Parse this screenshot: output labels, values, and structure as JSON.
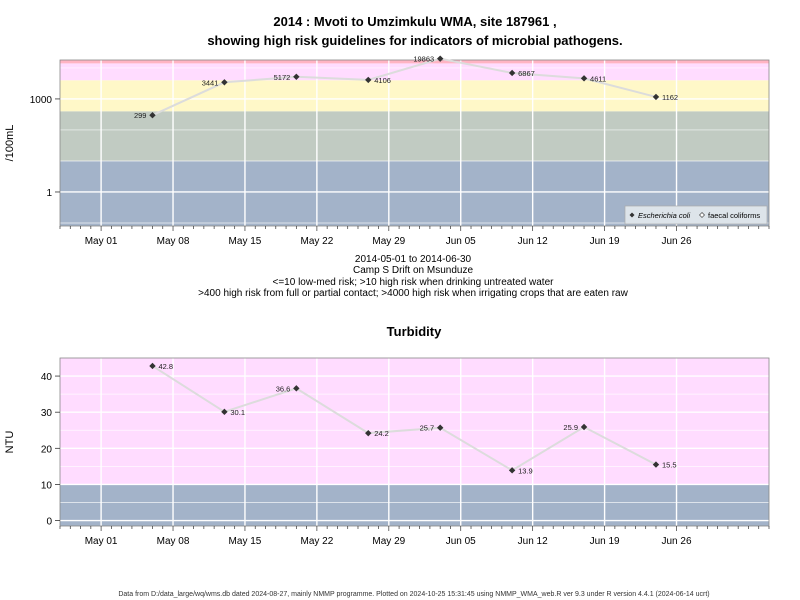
{
  "page_title_line1": "2014 : Mvoti to Umzimkulu WMA, site 187961 ,",
  "page_title_line2": "showing high risk guidelines for indicators of microbial pathogens.",
  "subtitle_lines": [
    "2014-05-01 to 2014-06-30",
    "Camp S Drift on Msunduze",
    "<=10 low-med risk; >10 high risk when drinking untreated water",
    ">400 high risk from full or partial contact; >4000 high risk when irrigating crops that are eaten raw"
  ],
  "footer": "Data from D:/data_large/wq/wms.db dated 2024-08-27, mainly NMMP programme. Plotted on 2024-10-25 15:31:45 using NMMP_WMA_web.R ver 9.3 under R version 4.4.1 (2024-06-14 ucrt)",
  "colors": {
    "band_low": "#a3b3c9",
    "band_mid": "#c1cbc2",
    "band_yellow": "#fff8c8",
    "band_pink": "#ffdcff",
    "band_red": "#ffb4c3",
    "series_line": "#dcdcdc",
    "marker": "#333333"
  },
  "x_ticks": [
    "May 01",
    "May 08",
    "May 15",
    "May 22",
    "May 29",
    "Jun 05",
    "Jun 12",
    "Jun 19",
    "Jun 26"
  ],
  "chart_data": [
    {
      "type": "scatter",
      "ylabel": "/100mL",
      "scale": "log",
      "ylim": [
        0.08,
        18000
      ],
      "xlim": [
        "2014-04-27",
        "2014-07-05"
      ],
      "yticks": [
        "1",
        "1000"
      ],
      "bands": [
        {
          "from": 0.08,
          "to": 10,
          "color": "band_low"
        },
        {
          "from": 10,
          "to": 400,
          "color": "band_mid"
        },
        {
          "from": 400,
          "to": 4000,
          "color": "band_yellow"
        },
        {
          "from": 4000,
          "to": 14000,
          "color": "band_pink"
        },
        {
          "from": 14000,
          "to": 18000,
          "color": "band_red"
        }
      ],
      "legend": {
        "position": "bottom-right",
        "entries": [
          "Escherichia coli",
          "faecal coliforms"
        ]
      },
      "series": [
        {
          "name": "Escherichia coli",
          "points": [
            {
              "x": "2014-05-06",
              "y": 299,
              "label": "299"
            },
            {
              "x": "2014-05-13",
              "y": 3441,
              "label": "3441"
            },
            {
              "x": "2014-05-20",
              "y": 5172,
              "label": "5172"
            },
            {
              "x": "2014-05-27",
              "y": 4106,
              "label": "4106"
            },
            {
              "x": "2014-06-03",
              "y": 19863,
              "label": "19863"
            },
            {
              "x": "2014-06-10",
              "y": 6867,
              "label": "6867"
            },
            {
              "x": "2014-06-17",
              "y": 4611,
              "label": "4611"
            },
            {
              "x": "2014-06-24",
              "y": 1162,
              "label": "1162"
            }
          ]
        }
      ]
    },
    {
      "type": "scatter",
      "title": "Turbidity",
      "ylabel": "NTU",
      "scale": "linear",
      "ylim": [
        -1.5,
        45
      ],
      "xlim": [
        "2014-04-27",
        "2014-07-05"
      ],
      "yticks": [
        0,
        10,
        20,
        30,
        40
      ],
      "bands": [
        {
          "from": -1.5,
          "to": 10,
          "color": "band_low"
        },
        {
          "from": 10,
          "to": 45,
          "color": "band_pink"
        }
      ],
      "series": [
        {
          "points": [
            {
              "x": "2014-05-06",
              "y": 42.8,
              "label": "42.8"
            },
            {
              "x": "2014-05-13",
              "y": 30.1,
              "label": "30.1"
            },
            {
              "x": "2014-05-20",
              "y": 36.6,
              "label": "36.6"
            },
            {
              "x": "2014-05-27",
              "y": 24.2,
              "label": "24.2"
            },
            {
              "x": "2014-06-03",
              "y": 25.7,
              "label": "25.7"
            },
            {
              "x": "2014-06-10",
              "y": 13.9,
              "label": "13.9"
            },
            {
              "x": "2014-06-17",
              "y": 25.9,
              "label": "25.9"
            },
            {
              "x": "2014-06-24",
              "y": 15.5,
              "label": "15.5"
            }
          ]
        }
      ]
    }
  ]
}
